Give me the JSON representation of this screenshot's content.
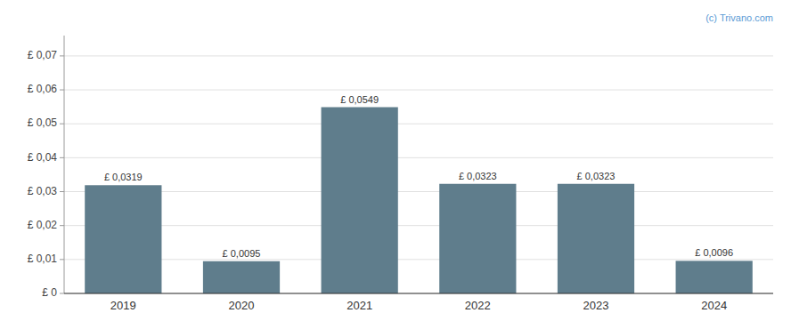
{
  "chart_data": {
    "type": "bar",
    "categories": [
      "2019",
      "2020",
      "2021",
      "2022",
      "2023",
      "2024"
    ],
    "values": [
      0.0319,
      0.0095,
      0.0549,
      0.0323,
      0.0323,
      0.0096
    ],
    "value_labels": [
      "£ 0,0319",
      "£ 0,0095",
      "£ 0,0549",
      "£ 0,0323",
      "£ 0,0323",
      "£ 0,0096"
    ],
    "data_labels": true,
    "color": "#5f7d8c",
    "ylim": [
      0,
      0.076
    ],
    "yticks": [
      {
        "value": 0,
        "label": "£ 0"
      },
      {
        "value": 0.01,
        "label": "£ 0,01"
      },
      {
        "value": 0.02,
        "label": "£ 0,02"
      },
      {
        "value": 0.03,
        "label": "£ 0,03"
      },
      {
        "value": 0.04,
        "label": "£ 0,04"
      },
      {
        "value": 0.05,
        "label": "£ 0,05"
      },
      {
        "value": 0.06,
        "label": "£ 0,06"
      },
      {
        "value": 0.07,
        "label": "£ 0,07"
      }
    ],
    "grid": true,
    "annotations": [
      "(c) Trivano.com"
    ]
  }
}
